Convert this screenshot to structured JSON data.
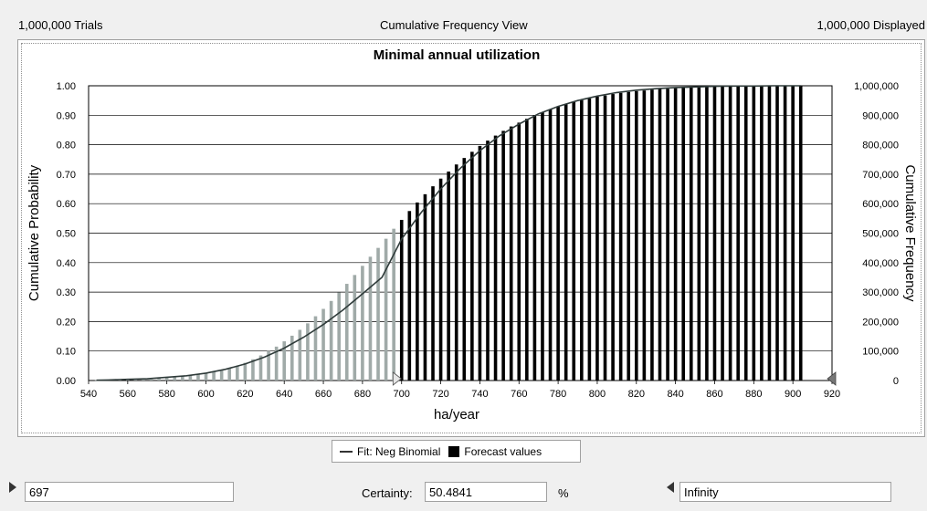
{
  "header": {
    "trials": "1,000,000 Trials",
    "view": "Cumulative Frequency View",
    "displayed": "1,000,000 Displayed"
  },
  "legend": {
    "fit_label": "Fit: Neg Binomial",
    "forecast_label": "Forecast values"
  },
  "controls": {
    "lower_value": "697",
    "certainty_label": "Certainty:",
    "certainty_value": "50.4841",
    "percent_label": "%",
    "upper_value": "Infinity"
  },
  "colors": {
    "excluded_bar": "#a0aaa8",
    "included_bar": "#000000",
    "fit_line": "#2f3b3a",
    "grid": "#000000"
  },
  "chart_data": {
    "type": "bar",
    "title": "Minimal annual utilization",
    "xlabel": "ha/year",
    "ylabel": "Cumulative Probability",
    "y2label": "Cumulative Frequency",
    "xlim": [
      540,
      920
    ],
    "ylim": [
      0,
      1.0
    ],
    "y2lim": [
      0,
      1000000
    ],
    "xticks": [
      "540",
      "560",
      "580",
      "600",
      "620",
      "640",
      "660",
      "680",
      "700",
      "720",
      "740",
      "760",
      "780",
      "800",
      "820",
      "840",
      "860",
      "880",
      "900",
      "920"
    ],
    "yticks": [
      "0.00",
      "0.10",
      "0.20",
      "0.30",
      "0.40",
      "0.50",
      "0.60",
      "0.70",
      "0.80",
      "0.90",
      "1.00"
    ],
    "y2ticks": [
      "0",
      "100,000",
      "200,000",
      "300,000",
      "400,000",
      "500,000",
      "600,000",
      "700,000",
      "800,000",
      "900,000",
      "1,000,000"
    ],
    "certainty_range": [
      697,
      "Infinity"
    ],
    "series": [
      {
        "name": "Forecast values",
        "x": [
          544,
          548,
          552,
          556,
          560,
          564,
          568,
          572,
          576,
          580,
          584,
          588,
          592,
          596,
          600,
          604,
          608,
          612,
          616,
          620,
          624,
          628,
          632,
          636,
          640,
          644,
          648,
          652,
          656,
          660,
          664,
          668,
          672,
          676,
          680,
          684,
          688,
          692,
          696,
          700,
          704,
          708,
          712,
          716,
          720,
          724,
          728,
          732,
          736,
          740,
          744,
          748,
          752,
          756,
          760,
          764,
          768,
          772,
          776,
          780,
          784,
          788,
          792,
          796,
          800,
          804,
          808,
          812,
          816,
          820,
          824,
          828,
          832,
          836,
          840,
          844,
          848,
          852,
          856,
          860,
          864,
          868,
          872,
          876,
          880,
          884,
          888,
          892,
          896,
          900,
          904
        ],
        "values": [
          0.001,
          0.002,
          0.002,
          0.003,
          0.004,
          0.005,
          0.006,
          0.007,
          0.009,
          0.011,
          0.013,
          0.015,
          0.018,
          0.021,
          0.025,
          0.03,
          0.035,
          0.042,
          0.05,
          0.06,
          0.072,
          0.085,
          0.1,
          0.115,
          0.133,
          0.152,
          0.172,
          0.194,
          0.218,
          0.243,
          0.27,
          0.299,
          0.328,
          0.358,
          0.389,
          0.42,
          0.45,
          0.481,
          0.515,
          0.545,
          0.575,
          0.604,
          0.632,
          0.659,
          0.685,
          0.709,
          0.733,
          0.755,
          0.776,
          0.796,
          0.814,
          0.831,
          0.847,
          0.862,
          0.875,
          0.888,
          0.9,
          0.91,
          0.92,
          0.929,
          0.937,
          0.945,
          0.951,
          0.957,
          0.963,
          0.967,
          0.972,
          0.976,
          0.979,
          0.982,
          0.984,
          0.987,
          0.989,
          0.99,
          0.992,
          0.993,
          0.994,
          0.995,
          0.996,
          0.997,
          0.997,
          0.998,
          0.998,
          0.998,
          0.999,
          0.999,
          0.999,
          0.999,
          0.999,
          1.0,
          1.0
        ]
      },
      {
        "name": "Fit: Neg Binomial",
        "type": "line",
        "x": [
          544,
          550,
          560,
          570,
          580,
          590,
          600,
          610,
          620,
          630,
          640,
          650,
          660,
          670,
          680,
          690,
          700,
          710,
          720,
          730,
          740,
          750,
          760,
          770,
          780,
          790,
          800,
          810,
          820,
          830,
          840,
          850,
          860,
          870,
          880,
          890,
          900,
          904
        ],
        "values": [
          0.001,
          0.002,
          0.004,
          0.006,
          0.011,
          0.016,
          0.025,
          0.038,
          0.056,
          0.08,
          0.11,
          0.147,
          0.19,
          0.239,
          0.294,
          0.35,
          0.48,
          0.57,
          0.65,
          0.72,
          0.78,
          0.83,
          0.87,
          0.905,
          0.93,
          0.95,
          0.965,
          0.977,
          0.985,
          0.99,
          0.994,
          0.996,
          0.998,
          0.999,
          0.999,
          1.0,
          1.0,
          1.0
        ]
      }
    ]
  }
}
